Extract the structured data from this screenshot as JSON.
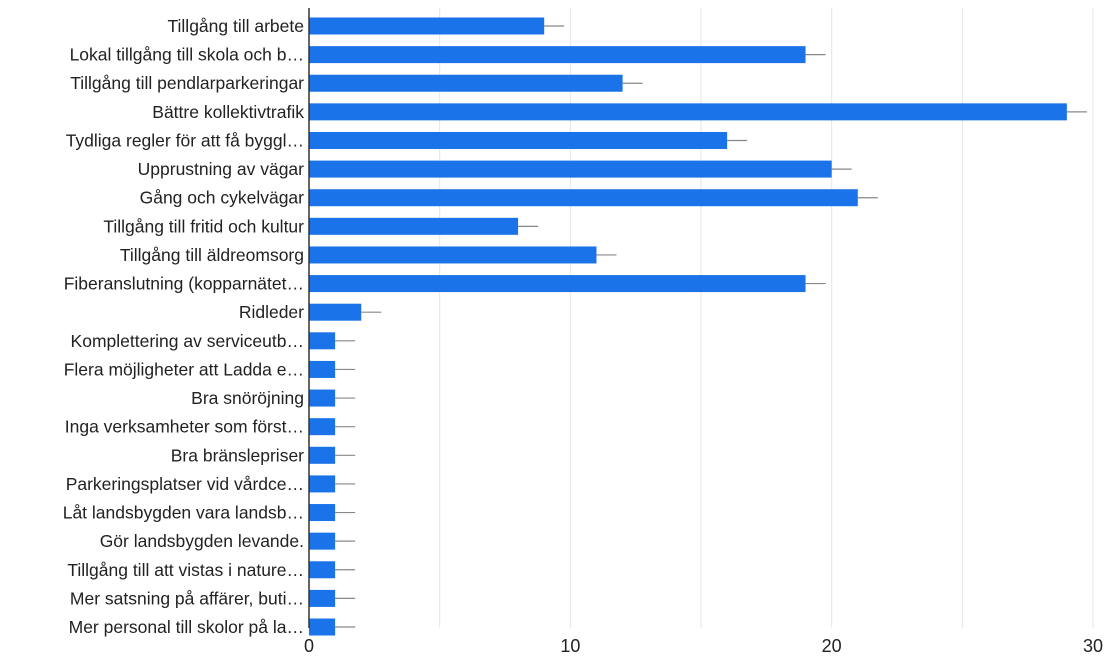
{
  "colors": {
    "bar": "#1a73e8",
    "grid": "#e6e6e6",
    "axis": "#333333",
    "error_bar": "#888888",
    "text": "#222222"
  },
  "chart_data": {
    "type": "bar",
    "orientation": "horizontal",
    "title": "",
    "xlabel": "",
    "ylabel": "",
    "xlim": [
      0,
      30
    ],
    "x_ticks": [
      0,
      10,
      20,
      30
    ],
    "grid": true,
    "error_bars": true,
    "categories": [
      "Tillgång till arbete",
      "Lokal tillgång till skola och b…",
      "Tillgång till pendlarparkeringar",
      "Bättre kollektivtrafik",
      "Tydliga regler för att få byggl…",
      "Upprustning av vägar",
      "Gång och cykelvägar",
      "Tillgång till fritid och kultur",
      "Tillgång till äldreomsorg",
      "Fiberanslutning (kopparnätet…",
      "Ridleder",
      "Komplettering av serviceutb…",
      "Flera möjligheter att Ladda e…",
      "Bra snöröjning",
      "Inga verksamheter som först…",
      "Bra bränslepriser",
      "Parkeringsplatser vid vårdce…",
      "Låt landsbygden vara landsb…",
      "Gör landsbygden levande.",
      "Tillgång till att vistas i nature…",
      "Mer satsning på affärer, buti…",
      "Mer personal till skolor på la…"
    ],
    "values": [
      9,
      19,
      12,
      29,
      16,
      20,
      21,
      8,
      11,
      19,
      2,
      1,
      1,
      1,
      1,
      1,
      1,
      1,
      1,
      1,
      1,
      1
    ]
  }
}
